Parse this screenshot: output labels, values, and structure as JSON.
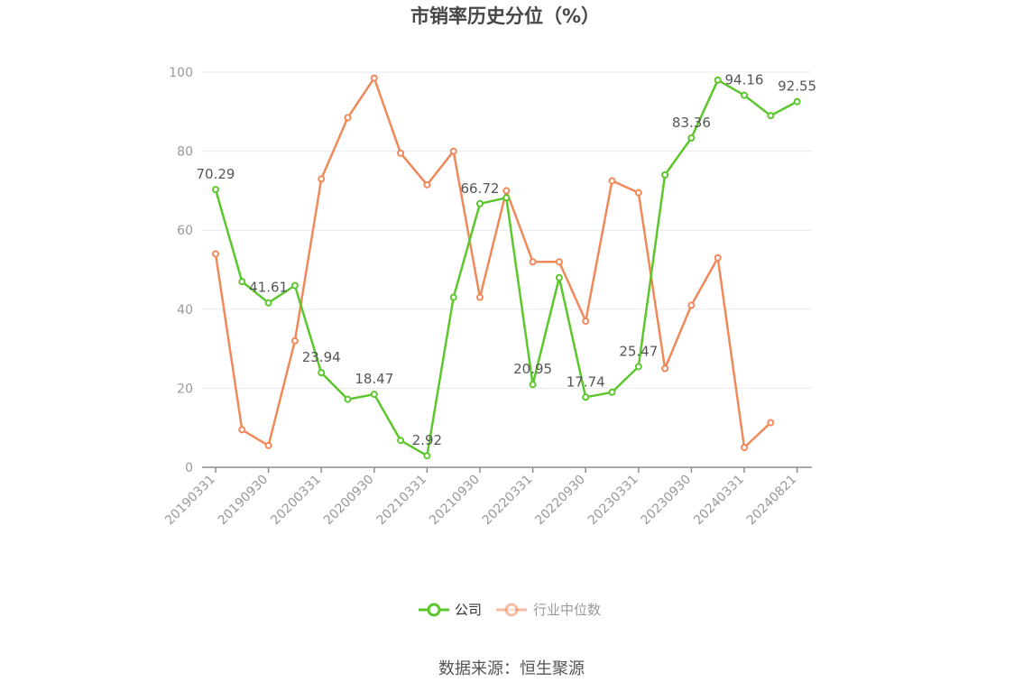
{
  "chart_data": {
    "type": "line",
    "title": "市销率历史分位（%）",
    "ylim": [
      0,
      100
    ],
    "yticks": [
      "0",
      "20",
      "40",
      "60",
      "80",
      "100"
    ],
    "xtick_labels": [
      "20190331",
      "20190930",
      "20200331",
      "20200930",
      "20210331",
      "20210930",
      "20220331",
      "20220930",
      "20230331",
      "20230930",
      "20240331",
      "20240821"
    ],
    "grid": "horizontal",
    "legend_position": "bottom",
    "series": [
      {
        "name": "公司",
        "color": "#5cc72c",
        "values": [
          70.29,
          47,
          41.61,
          46,
          23.94,
          17.2,
          18.47,
          6.8,
          2.92,
          43,
          66.72,
          68.2,
          20.95,
          48,
          17.74,
          19,
          25.47,
          74,
          83.36,
          98,
          94.16,
          89,
          92.55
        ],
        "point_labels": [
          "70.29",
          "",
          "41.61",
          "",
          "23.94",
          "",
          "18.47",
          "",
          "2.92",
          "",
          "66.72",
          "",
          "20.95",
          "",
          "17.74",
          "",
          "25.47",
          "",
          "83.36",
          "",
          "94.16",
          "",
          "92.55"
        ]
      },
      {
        "name": "行业中位数",
        "color": "#f0895a",
        "values": [
          54,
          9.5,
          5.5,
          32,
          73,
          88.5,
          98.5,
          79.5,
          71.5,
          80,
          43,
          70,
          52,
          52,
          37,
          72.5,
          69.5,
          25,
          41,
          53,
          5,
          11.3,
          null
        ]
      }
    ]
  },
  "legend": {
    "company": "公司",
    "industry": "行业中位数",
    "industry_text_color": "#999999",
    "company_text_color": "#333333"
  },
  "footer": {
    "source": "数据来源：恒生聚源"
  }
}
